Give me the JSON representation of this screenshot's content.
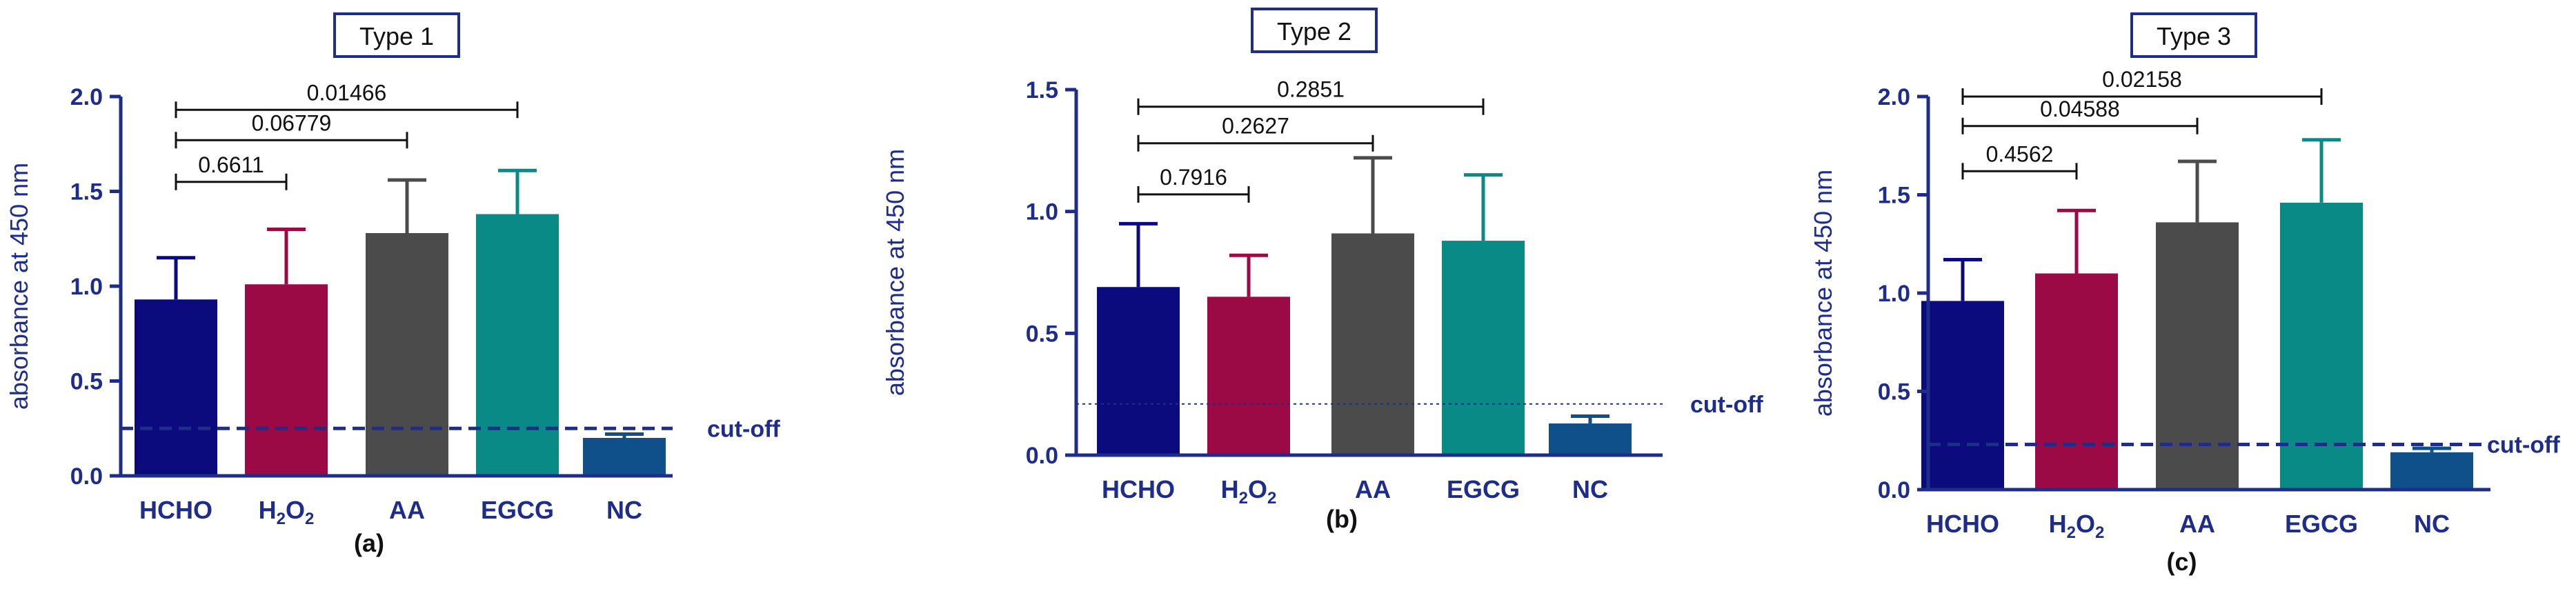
{
  "figure": {
    "colors": {
      "axis": "#1f2d8a",
      "HCHO": "#0b0b7e",
      "H2O2": "#9b0a45",
      "AA": "#4b4b4b",
      "EGCG": "#0a8a86",
      "NC": "#0f4f8a",
      "cutoff": "#1f2d8a",
      "text": "#111111"
    }
  },
  "chart_data": [
    {
      "type": "bar",
      "title": "Type 1",
      "panel_label": "(a)",
      "ylabel": "absorbance at 450 nm",
      "xlabel": "",
      "ylim": [
        0,
        2.0
      ],
      "yticks": [
        0.0,
        0.5,
        1.0,
        1.5,
        2.0
      ],
      "ytick_labels": [
        "0.0",
        "0.5",
        "1.0",
        "1.5",
        "2.0"
      ],
      "grid": false,
      "categories": [
        "HCHO",
        "H2O2",
        "AA",
        "EGCG",
        "NC"
      ],
      "category_labels": [
        {
          "main": "HCHO",
          "sub": ""
        },
        {
          "main": "H",
          "sub": "2",
          "main2": "O",
          "sub2": "2"
        },
        {
          "main": "AA",
          "sub": ""
        },
        {
          "main": "EGCG",
          "sub": ""
        },
        {
          "main": "NC",
          "sub": ""
        }
      ],
      "values": [
        0.93,
        1.01,
        1.28,
        1.38,
        0.2
      ],
      "errors": [
        0.22,
        0.29,
        0.28,
        0.23,
        0.02
      ],
      "cutoff": {
        "value": 0.25,
        "label": "cut-off",
        "style": "dashed-thick"
      },
      "comparisons": [
        {
          "from": "HCHO",
          "to": "H2O2",
          "label": "0.6611",
          "level": 1.55
        },
        {
          "from": "HCHO",
          "to": "AA",
          "label": "0.06779",
          "level": 1.77
        },
        {
          "from": "HCHO",
          "to": "EGCG",
          "label": "0.01466",
          "level": 1.93
        }
      ]
    },
    {
      "type": "bar",
      "title": "Type 2",
      "panel_label": "(b)",
      "ylabel": "absorbance at 450 nm",
      "xlabel": "",
      "ylim": [
        0,
        1.5
      ],
      "yticks": [
        0.0,
        0.5,
        1.0,
        1.5
      ],
      "ytick_labels": [
        "0.0",
        "0.5",
        "1.0",
        "1.5"
      ],
      "grid": false,
      "categories": [
        "HCHO",
        "H2O2",
        "AA",
        "EGCG",
        "NC"
      ],
      "category_labels": [
        {
          "main": "HCHO",
          "sub": ""
        },
        {
          "main": "H",
          "sub": "2",
          "main2": "O",
          "sub2": "2"
        },
        {
          "main": "AA",
          "sub": ""
        },
        {
          "main": "EGCG",
          "sub": ""
        },
        {
          "main": "NC",
          "sub": ""
        }
      ],
      "values": [
        0.69,
        0.65,
        0.91,
        0.88,
        0.13
      ],
      "errors": [
        0.26,
        0.17,
        0.31,
        0.27,
        0.03
      ],
      "cutoff": {
        "value": 0.21,
        "label": "cut-off",
        "style": "dotted-thin"
      },
      "comparisons": [
        {
          "from": "HCHO",
          "to": "H2O2",
          "label": "0.7916",
          "level": 1.07
        },
        {
          "from": "HCHO",
          "to": "AA",
          "label": "0.2627",
          "level": 1.28
        },
        {
          "from": "HCHO",
          "to": "EGCG",
          "label": "0.2851",
          "level": 1.43
        }
      ]
    },
    {
      "type": "bar",
      "title": "Type 3",
      "panel_label": "(c)",
      "ylabel": "absorbance at 450 nm",
      "xlabel": "",
      "ylim": [
        0,
        2.0
      ],
      "yticks": [
        0.0,
        0.5,
        1.0,
        1.5,
        2.0
      ],
      "ytick_labels": [
        "0.0",
        "0.5",
        "1.0",
        "1.5",
        "2.0"
      ],
      "grid": false,
      "categories": [
        "HCHO",
        "H2O2",
        "AA",
        "EGCG",
        "NC"
      ],
      "category_labels": [
        {
          "main": "HCHO",
          "sub": ""
        },
        {
          "main": "H",
          "sub": "2",
          "main2": "O",
          "sub2": "2"
        },
        {
          "main": "AA",
          "sub": ""
        },
        {
          "main": "EGCG",
          "sub": ""
        },
        {
          "main": "NC",
          "sub": ""
        }
      ],
      "values": [
        0.96,
        1.1,
        1.36,
        1.46,
        0.19
      ],
      "errors": [
        0.21,
        0.32,
        0.31,
        0.32,
        0.02
      ],
      "cutoff": {
        "value": 0.23,
        "label": "cut-off",
        "style": "dashed-thick"
      },
      "comparisons": [
        {
          "from": "HCHO",
          "to": "H2O2",
          "label": "0.4562",
          "level": 1.62
        },
        {
          "from": "HCHO",
          "to": "AA",
          "label": "0.04588",
          "level": 1.85
        },
        {
          "from": "HCHO",
          "to": "EGCG",
          "label": "0.02158",
          "level": 2.0
        }
      ]
    }
  ]
}
